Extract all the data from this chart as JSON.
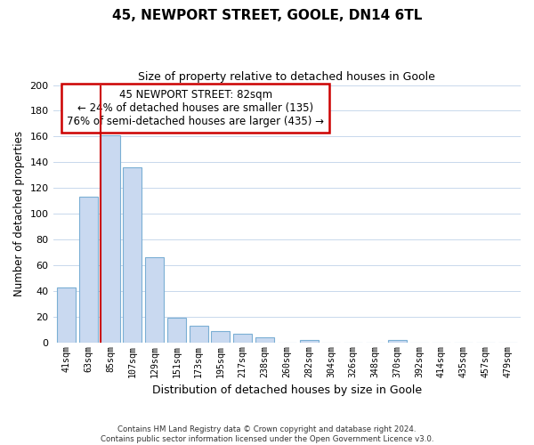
{
  "title": "45, NEWPORT STREET, GOOLE, DN14 6TL",
  "subtitle": "Size of property relative to detached houses in Goole",
  "xlabel": "Distribution of detached houses by size in Goole",
  "ylabel": "Number of detached properties",
  "bar_labels": [
    "41sqm",
    "63sqm",
    "85sqm",
    "107sqm",
    "129sqm",
    "151sqm",
    "173sqm",
    "195sqm",
    "217sqm",
    "238sqm",
    "260sqm",
    "282sqm",
    "304sqm",
    "326sqm",
    "348sqm",
    "370sqm",
    "392sqm",
    "414sqm",
    "435sqm",
    "457sqm",
    "479sqm"
  ],
  "bar_values": [
    43,
    113,
    161,
    136,
    66,
    19,
    13,
    9,
    7,
    4,
    0,
    2,
    0,
    0,
    0,
    2,
    0,
    0,
    0,
    0,
    0
  ],
  "bar_color": "#c9d9f0",
  "bar_edge_color": "#7bafd4",
  "vline_color": "#cc0000",
  "ylim": [
    0,
    200
  ],
  "yticks": [
    0,
    20,
    40,
    60,
    80,
    100,
    120,
    140,
    160,
    180,
    200
  ],
  "annotation_title": "45 NEWPORT STREET: 82sqm",
  "annotation_line1": "← 24% of detached houses are smaller (135)",
  "annotation_line2": "76% of semi-detached houses are larger (435) →",
  "annotation_box_color": "#ffffff",
  "annotation_box_edge": "#cc0000",
  "footnote1": "Contains HM Land Registry data © Crown copyright and database right 2024.",
  "footnote2": "Contains public sector information licensed under the Open Government Licence v3.0.",
  "background_color": "#ffffff",
  "grid_color": "#c8d8ec"
}
